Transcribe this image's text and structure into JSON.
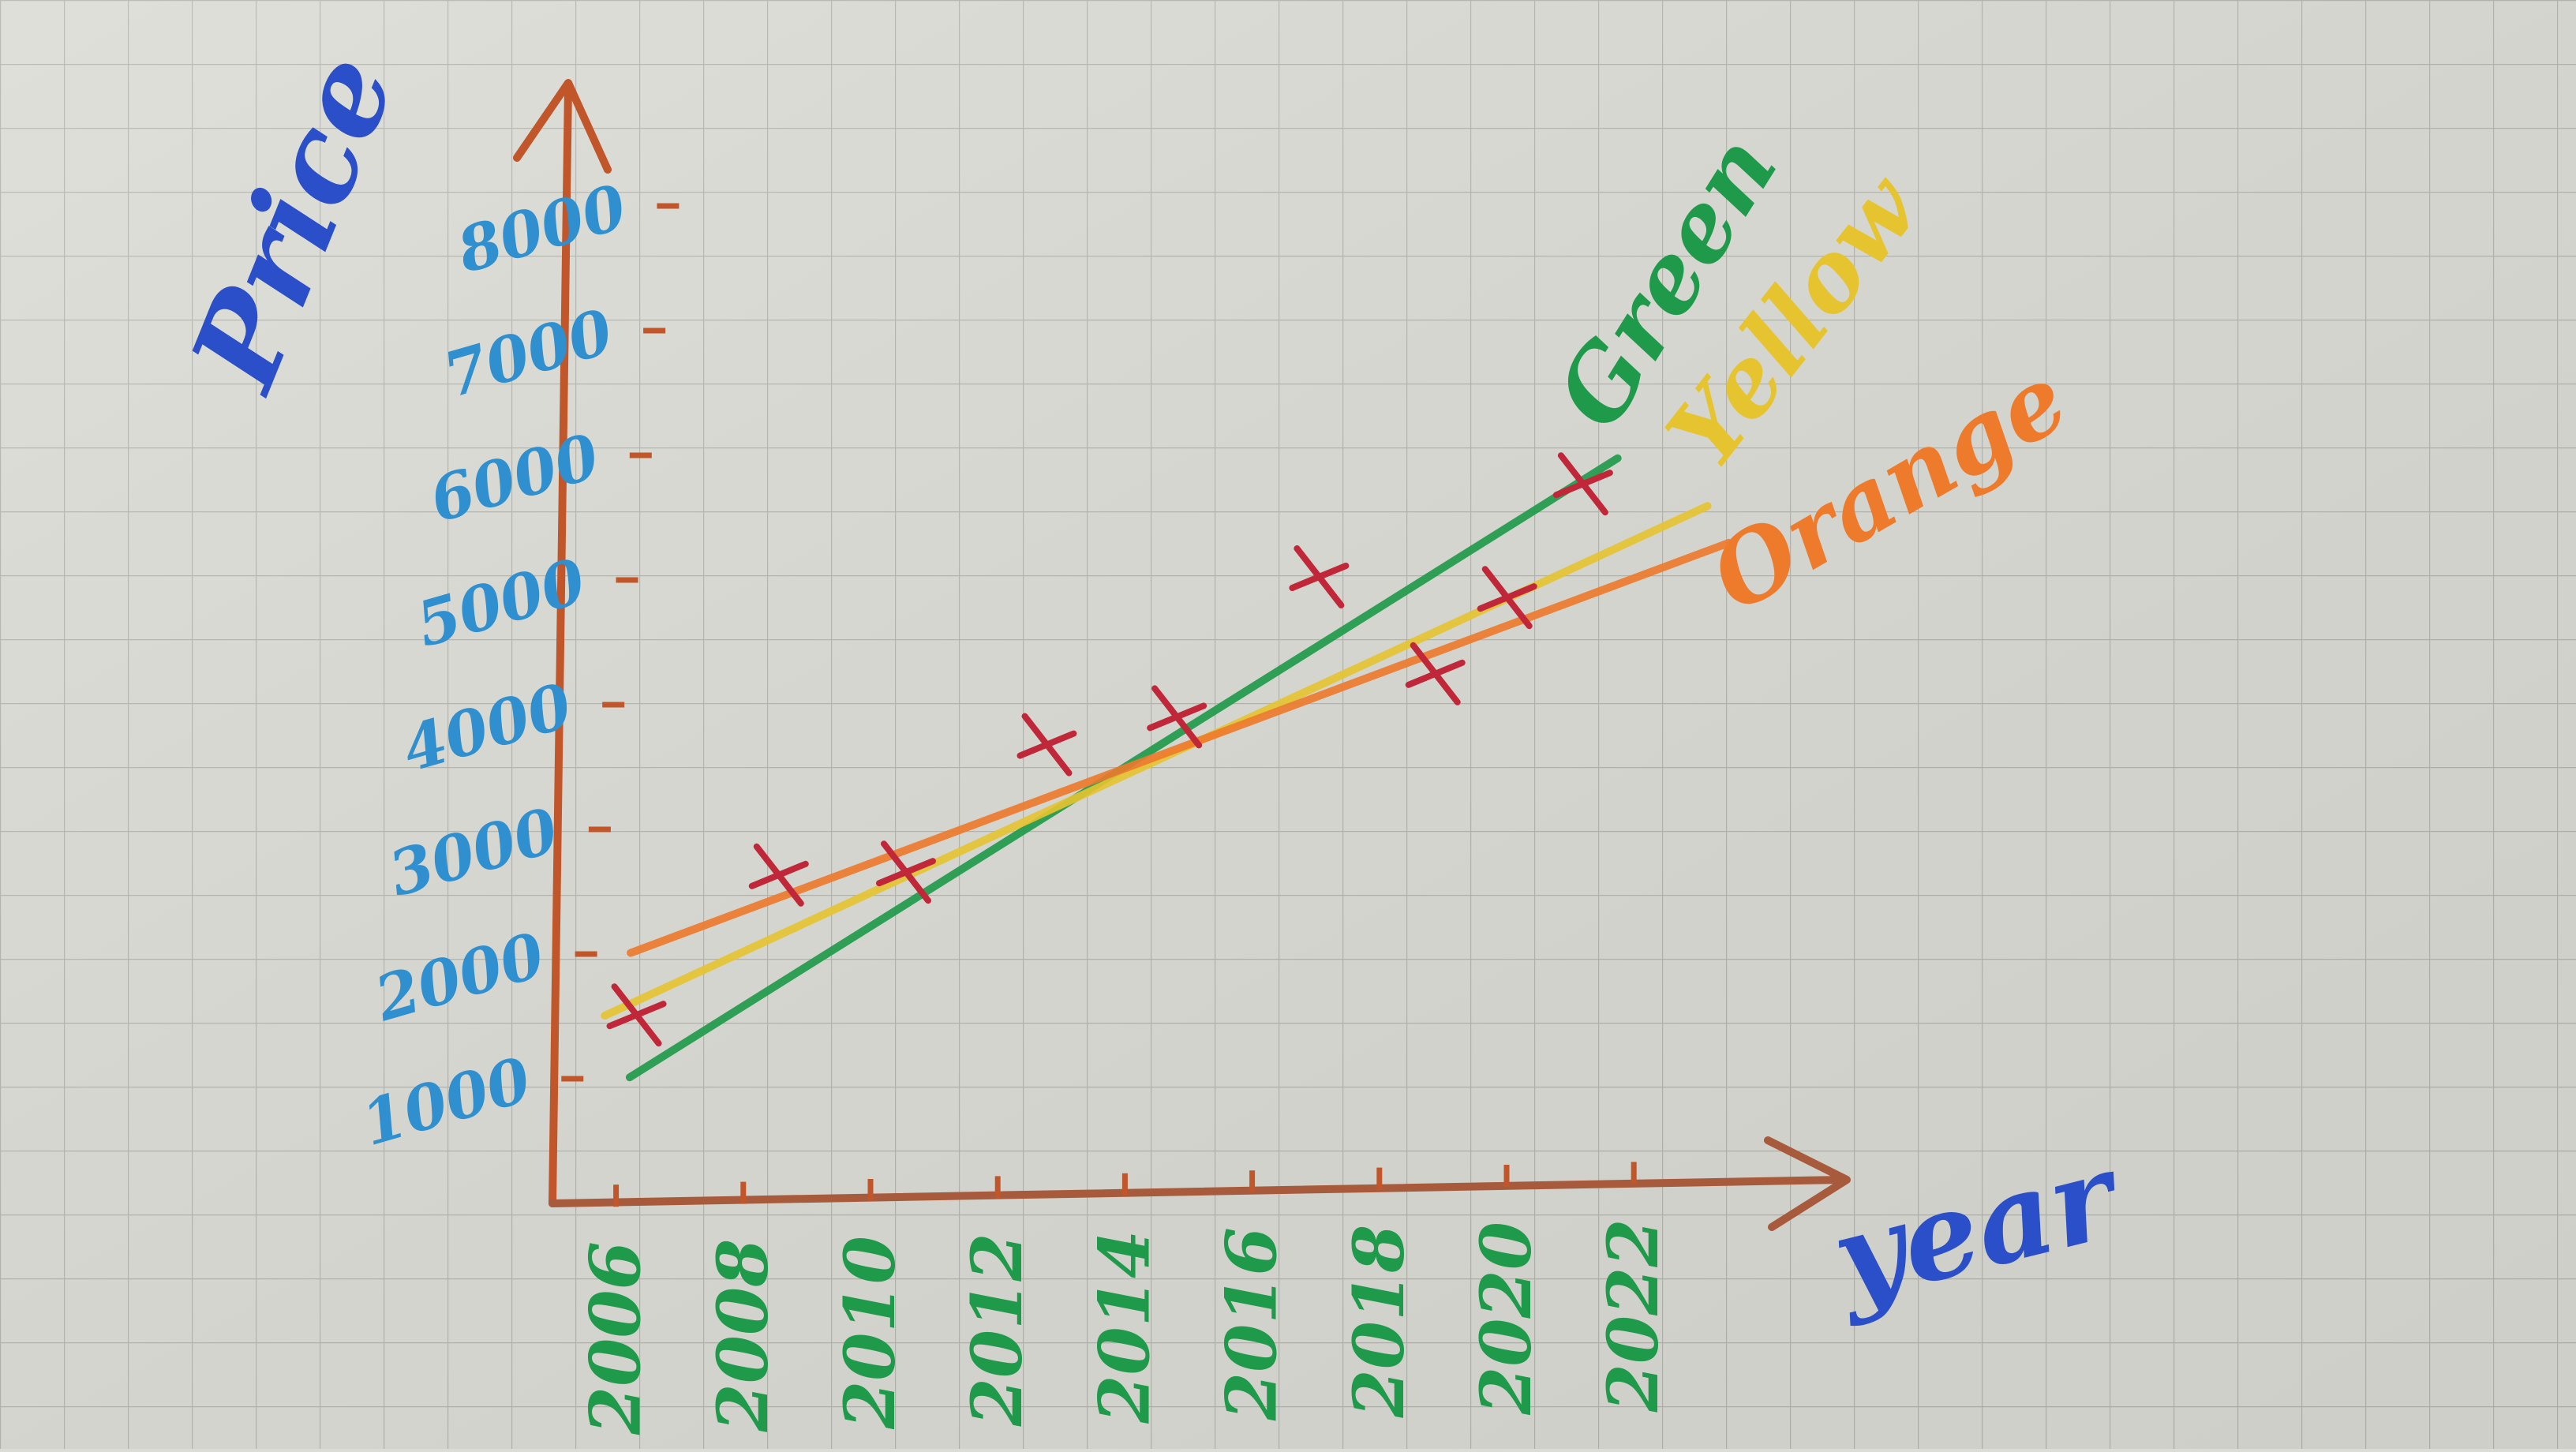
{
  "chart_data": {
    "type": "line",
    "title": "",
    "xlabel": "year",
    "ylabel": "Price",
    "x_ticks": [
      "2006",
      "2008",
      "2010",
      "2012",
      "2014",
      "2016",
      "2018",
      "2020",
      "2022"
    ],
    "y_ticks": [
      "1000",
      "2000",
      "3000",
      "4000",
      "5000",
      "6000",
      "7000",
      "8000"
    ],
    "xlim": [
      2004,
      2024
    ],
    "ylim": [
      0,
      8800
    ],
    "grid": true,
    "points": {
      "x": [
        2006,
        2008,
        2010,
        2012,
        2014,
        2016,
        2018,
        2019,
        2020
      ],
      "y": [
        1500,
        2600,
        2600,
        3600,
        3800,
        4900,
        4100,
        4700,
        5600
      ]
    },
    "series": [
      {
        "name": "Green",
        "x": [
          2006,
          2020.5
        ],
        "y": [
          1000,
          5800
        ],
        "color": "#1f9a4a"
      },
      {
        "name": "Yellow",
        "x": [
          2005.5,
          2022
        ],
        "y": [
          1500,
          5400
        ],
        "color": "#e6c430"
      },
      {
        "name": "Orange",
        "x": [
          2005.8,
          2022.4
        ],
        "y": [
          2000,
          5100
        ],
        "color": "#ee7a2c"
      }
    ],
    "colors": {
      "axis": "#c0562a",
      "y_tick_labels": "#2f8fcf",
      "x_tick_labels": "#1f9a4a",
      "axis_titles": "#2a4fc8",
      "markers": "#c0283a"
    }
  }
}
